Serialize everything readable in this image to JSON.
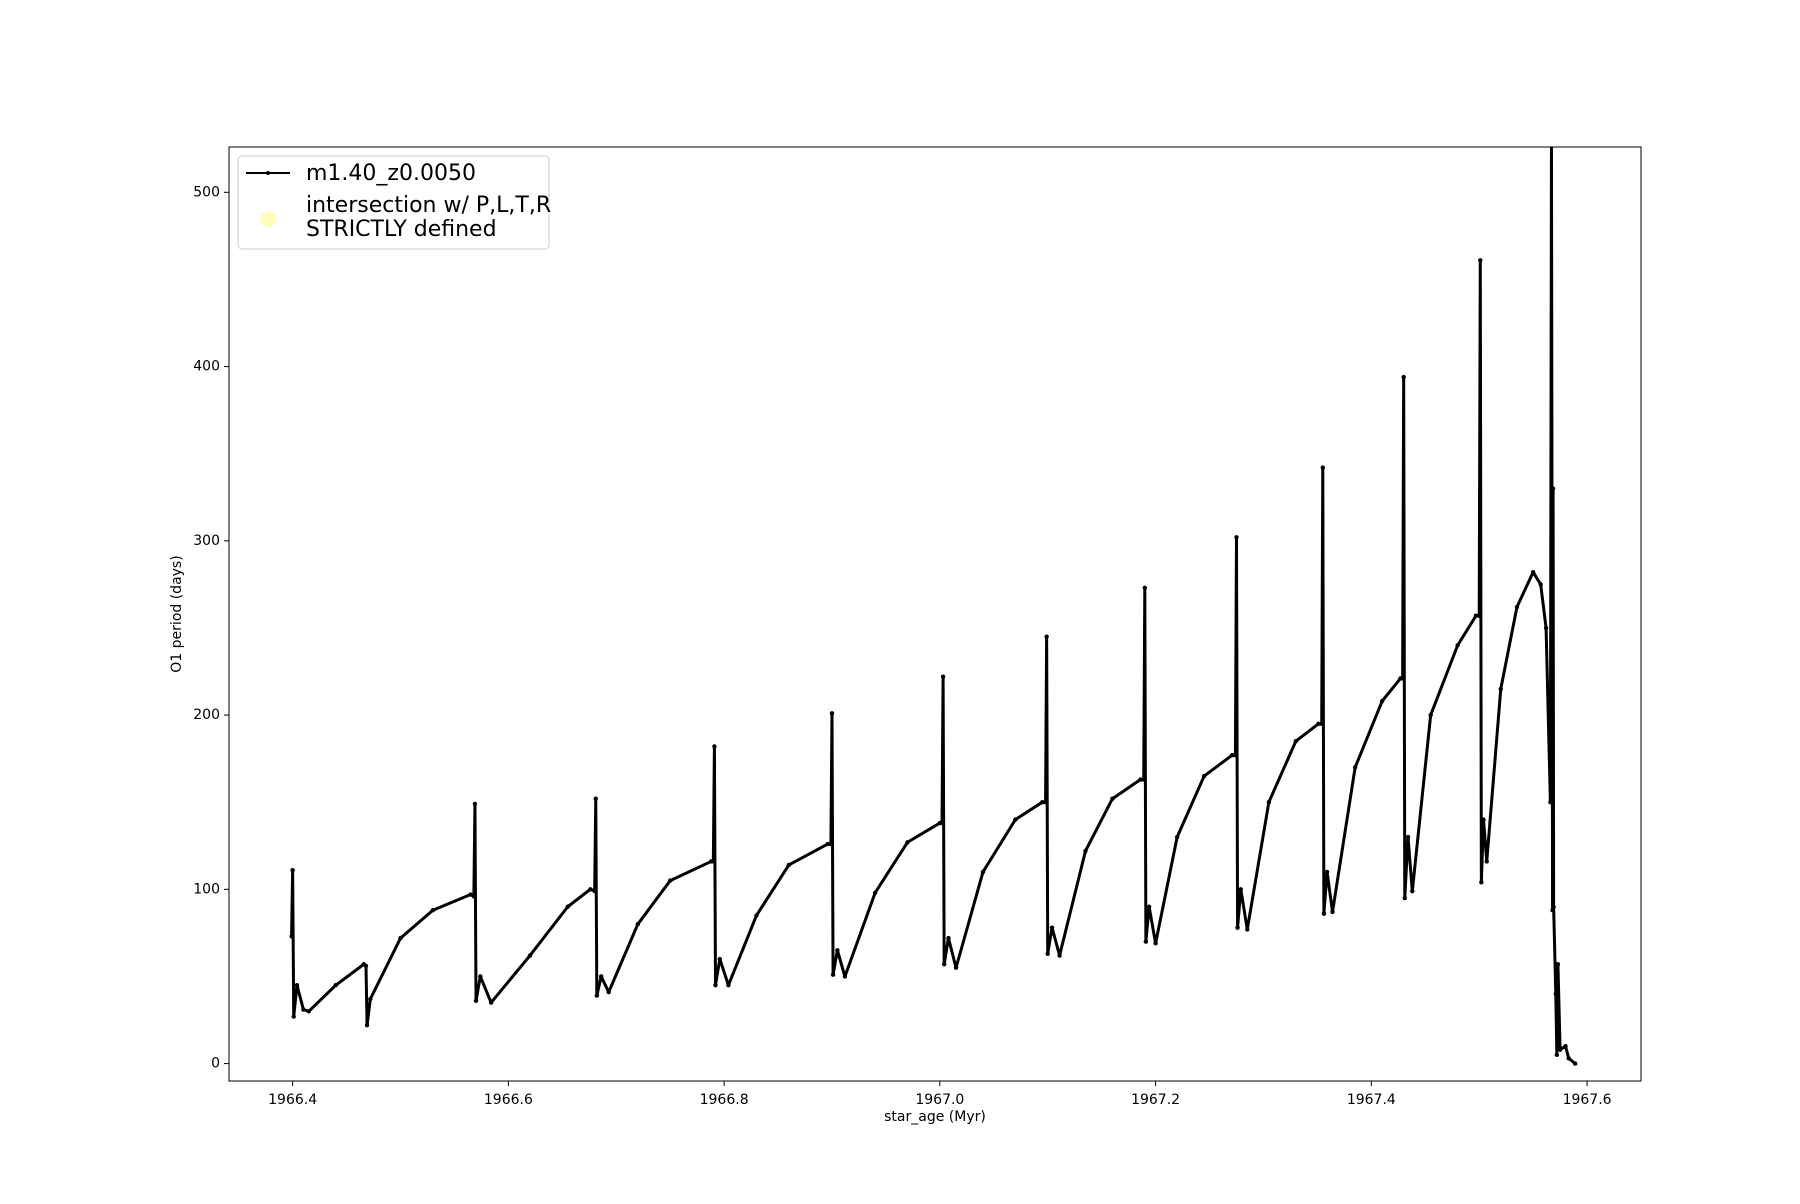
{
  "chart_data": {
    "type": "line",
    "x_label": "star_age (Myr)",
    "y_label": "O1 period (days)",
    "xlim": [
      1966.341,
      1967.65
    ],
    "ylim": [
      -10,
      526
    ],
    "xticks": [
      1966.4,
      1966.6,
      1966.8,
      {
        "value": 1967.0,
        "label": "1967.0"
      },
      1967.2,
      1967.4,
      1967.6
    ],
    "yticks": [
      0,
      100,
      200,
      300,
      400,
      500
    ],
    "legend": "upper left",
    "series": [
      {
        "name": "m1.40_z0.0050",
        "color": "#000000",
        "x": [
          1966.399,
          1966.4,
          1966.401,
          1966.404,
          1966.41,
          1966.415,
          1966.44,
          1966.466,
          1966.468,
          1966.469,
          1966.472,
          1966.5,
          1966.53,
          1966.565,
          1966.568,
          1966.569,
          1966.57,
          1966.574,
          1966.584,
          1966.62,
          1966.655,
          1966.676,
          1966.68,
          1966.681,
          1966.682,
          1966.686,
          1966.693,
          1966.72,
          1966.75,
          1966.788,
          1966.79,
          1966.791,
          1966.792,
          1966.796,
          1966.804,
          1966.83,
          1966.86,
          1966.896,
          1966.899,
          1966.9,
          1966.901,
          1966.905,
          1966.912,
          1966.94,
          1966.97,
          1967.0,
          1967.002,
          1967.003,
          1967.004,
          1967.008,
          1967.015,
          1967.04,
          1967.07,
          1967.095,
          1967.098,
          1967.099,
          1967.1,
          1967.104,
          1967.111,
          1967.135,
          1967.16,
          1967.186,
          1967.189,
          1967.19,
          1967.191,
          1967.194,
          1967.2,
          1967.22,
          1967.245,
          1967.271,
          1967.274,
          1967.275,
          1967.276,
          1967.279,
          1967.285,
          1967.305,
          1967.33,
          1967.351,
          1967.354,
          1967.355,
          1967.356,
          1967.359,
          1967.364,
          1967.385,
          1967.41,
          1967.427,
          1967.429,
          1967.43,
          1967.431,
          1967.434,
          1967.438,
          1967.455,
          1967.48,
          1967.497,
          1967.5,
          1967.501,
          1967.502,
          1967.504,
          1967.507,
          1967.52,
          1967.535,
          1967.55,
          1967.557,
          1967.562,
          1967.566,
          1967.567,
          1967.568,
          1967.5685,
          1967.569,
          1967.571,
          1967.572,
          1967.573,
          1967.575,
          1967.58,
          1967.583,
          1967.589
        ],
        "values": [
          73,
          111,
          27,
          45,
          31,
          30,
          45,
          57,
          56,
          22,
          37,
          72,
          88,
          97,
          96,
          149,
          36,
          50,
          35,
          62,
          90,
          100,
          99,
          152,
          39,
          50,
          41,
          80,
          105,
          116,
          116,
          182,
          45,
          60,
          45,
          85,
          114,
          126,
          126,
          201,
          51,
          65,
          50,
          98,
          127,
          138,
          138,
          222,
          57,
          72,
          55,
          110,
          140,
          150,
          150,
          245,
          63,
          78,
          62,
          122,
          152,
          163,
          163,
          273,
          70,
          90,
          69,
          130,
          165,
          177,
          177,
          302,
          78,
          100,
          77,
          150,
          185,
          195,
          195,
          342,
          86,
          110,
          87,
          170,
          208,
          221,
          221,
          394,
          95,
          130,
          99,
          200,
          240,
          257,
          257,
          461,
          104,
          140,
          116,
          215,
          262,
          282,
          275,
          250,
          150,
          530,
          88,
          330,
          90,
          40,
          5,
          57,
          8,
          10,
          3,
          0
        ]
      },
      {
        "name": "intersection w/ P,L,T,R\nSTRICTLY defined",
        "color": "#fdfcb8",
        "x": [],
        "values": []
      }
    ]
  }
}
